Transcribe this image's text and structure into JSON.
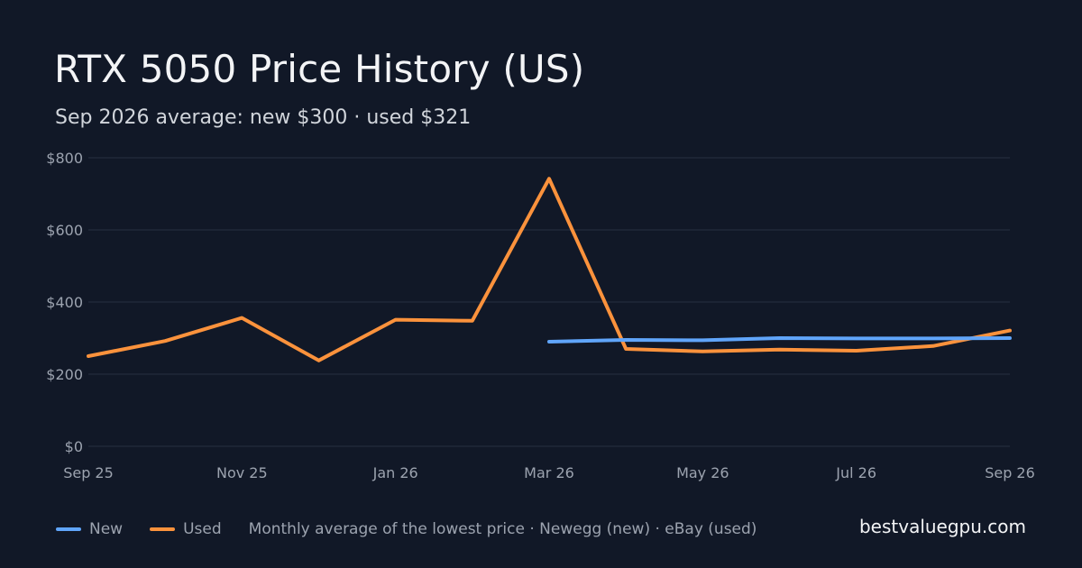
{
  "header": {
    "title": "RTX 5050 Price History (US)",
    "subtitle": "Sep 2026 average: new $300 · used $321"
  },
  "footer": {
    "source_note": "Monthly average of the lowest price · Newegg (new) · eBay (used)",
    "site": "bestvaluegpu.com"
  },
  "colors": {
    "background": "#111827",
    "grid": "#273041",
    "new": "#60a5fa",
    "used": "#fb923c"
  },
  "chart_data": {
    "type": "line",
    "x": [
      "2025-09",
      "2025-10",
      "2025-11",
      "2025-12",
      "2026-01",
      "2026-02",
      "2026-03",
      "2026-04",
      "2026-05",
      "2026-06",
      "2026-07",
      "2026-08",
      "2026-09"
    ],
    "x_tick_labels": [
      {
        "x": "2025-09",
        "label": "Sep 25"
      },
      {
        "x": "2025-11",
        "label": "Nov 25"
      },
      {
        "x": "2026-01",
        "label": "Jan 26"
      },
      {
        "x": "2026-03",
        "label": "Mar 26"
      },
      {
        "x": "2026-05",
        "label": "May 26"
      },
      {
        "x": "2026-07",
        "label": "Jul 26"
      },
      {
        "x": "2026-09",
        "label": "Sep 26"
      }
    ],
    "y_ticks": [
      {
        "value": 0,
        "label": "$0"
      },
      {
        "value": 200,
        "label": "$200"
      },
      {
        "value": 400,
        "label": "$400"
      },
      {
        "value": 600,
        "label": "$600"
      },
      {
        "value": 800,
        "label": "$800"
      }
    ],
    "ylim": [
      0,
      800
    ],
    "grid": true,
    "legend_position": "bottom-left",
    "series": [
      {
        "name": "New",
        "color": "#60a5fa",
        "values": [
          null,
          null,
          null,
          null,
          null,
          null,
          290,
          295,
          294,
          300,
          299,
          299,
          300
        ]
      },
      {
        "name": "Used",
        "color": "#fb923c",
        "values": [
          250,
          292,
          356,
          238,
          351,
          348,
          742,
          270,
          263,
          268,
          265,
          278,
          321
        ]
      }
    ]
  }
}
